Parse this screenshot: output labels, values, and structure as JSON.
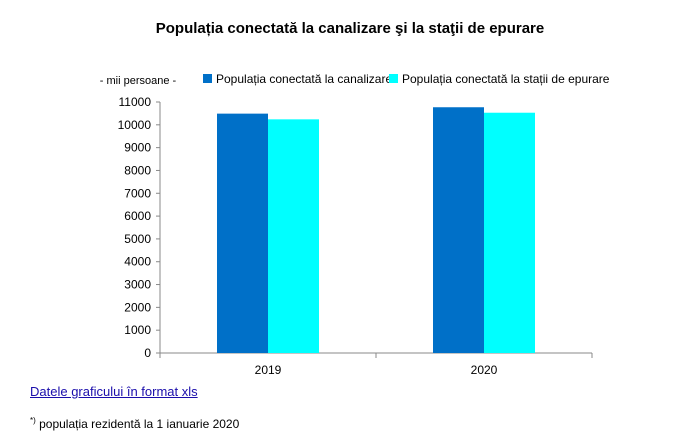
{
  "chart_data": {
    "type": "bar",
    "title": "Populația conectată la canalizare şi la staţii de epurare",
    "ylabel": "- mii persoane -",
    "xlabel": "",
    "categories": [
      "2019",
      "2020"
    ],
    "series": [
      {
        "name": "Populația conectată la canalizare",
        "values": [
          10490,
          10770
        ],
        "color": "#0070C8"
      },
      {
        "name": "Populația conectată la stații de epurare",
        "values": [
          10240,
          10530
        ],
        "color": "#00FFFF"
      }
    ],
    "ylim": [
      0,
      11000
    ],
    "yticks": [
      0,
      1000,
      2000,
      3000,
      4000,
      5000,
      6000,
      7000,
      8000,
      9000,
      10000,
      11000
    ],
    "grid": false,
    "legend": "top"
  },
  "link_label": "Datele graficului în format xls",
  "footnote_mark": "*)",
  "footnote_text": " populația rezidentă la 1 ianuarie 2020"
}
